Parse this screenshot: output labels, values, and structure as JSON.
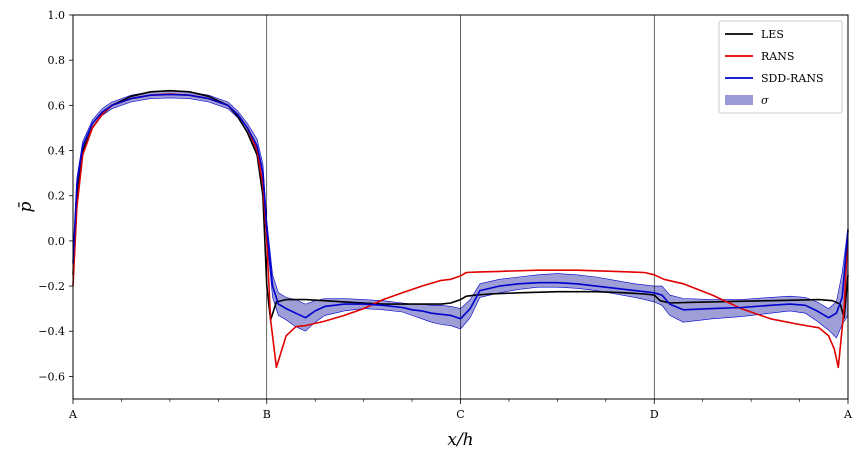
{
  "chart_data": {
    "type": "line",
    "xlabel": "x/h",
    "ylabel": "p̄",
    "xlim": [
      0,
      4
    ],
    "ylim": [
      -0.7,
      1.0
    ],
    "yticks": [
      -0.6,
      -0.4,
      -0.2,
      0.0,
      0.2,
      0.4,
      0.6,
      0.8,
      1.0
    ],
    "ytick_labels": [
      "−0.6",
      "−0.4",
      "−0.2",
      "0.0",
      "0.2",
      "0.4",
      "0.6",
      "0.8",
      "1.0"
    ],
    "xticks_major": [
      0,
      1,
      2,
      3,
      4
    ],
    "xtick_labels": [
      "A",
      "B",
      "C",
      "D",
      "A"
    ],
    "xticks_minor": [
      0.25,
      0.5,
      0.75,
      1.25,
      1.5,
      1.75,
      2.25,
      2.5,
      2.75,
      3.25,
      3.5,
      3.75
    ],
    "vlines": [
      1,
      2,
      3
    ],
    "legend_position": "top-right",
    "grid": false,
    "series": [
      {
        "name": "LES",
        "color": "#000000",
        "x": [
          0,
          0.02,
          0.05,
          0.1,
          0.15,
          0.2,
          0.3,
          0.4,
          0.5,
          0.6,
          0.7,
          0.8,
          0.85,
          0.9,
          0.95,
          0.98,
          1.0,
          1.02,
          1.05,
          1.1,
          1.2,
          1.3,
          1.4,
          1.5,
          1.6,
          1.7,
          1.8,
          1.9,
          1.95,
          2.0,
          2.03,
          2.08,
          2.15,
          2.3,
          2.5,
          2.7,
          2.85,
          2.95,
          3.0,
          3.03,
          3.08,
          3.2,
          3.4,
          3.6,
          3.75,
          3.85,
          3.92,
          3.96,
          3.98,
          4.0
        ],
        "y": [
          -0.15,
          0.2,
          0.4,
          0.5,
          0.56,
          0.6,
          0.64,
          0.66,
          0.665,
          0.66,
          0.64,
          0.6,
          0.55,
          0.48,
          0.38,
          0.2,
          -0.2,
          -0.35,
          -0.27,
          -0.26,
          -0.26,
          -0.265,
          -0.27,
          -0.275,
          -0.28,
          -0.28,
          -0.28,
          -0.28,
          -0.275,
          -0.26,
          -0.245,
          -0.24,
          -0.235,
          -0.23,
          -0.225,
          -0.225,
          -0.23,
          -0.235,
          -0.24,
          -0.265,
          -0.275,
          -0.272,
          -0.268,
          -0.265,
          -0.262,
          -0.26,
          -0.265,
          -0.28,
          -0.34,
          -0.15
        ]
      },
      {
        "name": "RANS",
        "color": "#e00000",
        "x": [
          0,
          0.02,
          0.05,
          0.1,
          0.15,
          0.2,
          0.3,
          0.4,
          0.5,
          0.6,
          0.7,
          0.8,
          0.85,
          0.9,
          0.95,
          0.98,
          1.0,
          1.02,
          1.05,
          1.1,
          1.15,
          1.2,
          1.3,
          1.4,
          1.5,
          1.6,
          1.7,
          1.8,
          1.9,
          1.95,
          2.0,
          2.03,
          2.08,
          2.2,
          2.4,
          2.6,
          2.8,
          2.95,
          3.0,
          3.05,
          3.15,
          3.3,
          3.45,
          3.6,
          3.75,
          3.85,
          3.9,
          3.93,
          3.95,
          3.98,
          4.0
        ],
        "y": [
          -0.2,
          0.15,
          0.38,
          0.5,
          0.56,
          0.6,
          0.63,
          0.645,
          0.65,
          0.645,
          0.63,
          0.6,
          0.56,
          0.5,
          0.4,
          0.25,
          0.0,
          -0.35,
          -0.56,
          -0.42,
          -0.38,
          -0.375,
          -0.355,
          -0.33,
          -0.3,
          -0.26,
          -0.23,
          -0.2,
          -0.175,
          -0.17,
          -0.155,
          -0.14,
          -0.138,
          -0.135,
          -0.13,
          -0.13,
          -0.135,
          -0.14,
          -0.15,
          -0.17,
          -0.19,
          -0.24,
          -0.3,
          -0.345,
          -0.37,
          -0.385,
          -0.42,
          -0.48,
          -0.56,
          -0.3,
          0.05
        ]
      },
      {
        "name": "SDD-RANS",
        "color": "#0000cc",
        "x": [
          0,
          0.02,
          0.05,
          0.1,
          0.15,
          0.2,
          0.3,
          0.4,
          0.5,
          0.6,
          0.7,
          0.8,
          0.85,
          0.9,
          0.95,
          0.98,
          1.0,
          1.03,
          1.06,
          1.1,
          1.15,
          1.2,
          1.25,
          1.3,
          1.4,
          1.5,
          1.6,
          1.7,
          1.75,
          1.8,
          1.85,
          1.9,
          1.95,
          2.0,
          2.05,
          2.1,
          2.2,
          2.3,
          2.4,
          2.5,
          2.6,
          2.7,
          2.8,
          2.9,
          2.95,
          3.0,
          3.04,
          3.08,
          3.15,
          3.3,
          3.45,
          3.6,
          3.7,
          3.78,
          3.84,
          3.9,
          3.94,
          3.97,
          4.0
        ],
        "y": [
          -0.1,
          0.25,
          0.42,
          0.52,
          0.57,
          0.6,
          0.63,
          0.645,
          0.648,
          0.645,
          0.63,
          0.6,
          0.56,
          0.5,
          0.42,
          0.3,
          0.05,
          -0.2,
          -0.28,
          -0.3,
          -0.32,
          -0.34,
          -0.31,
          -0.29,
          -0.28,
          -0.28,
          -0.285,
          -0.295,
          -0.305,
          -0.31,
          -0.32,
          -0.325,
          -0.33,
          -0.345,
          -0.3,
          -0.22,
          -0.2,
          -0.19,
          -0.185,
          -0.185,
          -0.19,
          -0.2,
          -0.21,
          -0.22,
          -0.225,
          -0.23,
          -0.24,
          -0.28,
          -0.305,
          -0.3,
          -0.295,
          -0.285,
          -0.28,
          -0.285,
          -0.31,
          -0.34,
          -0.32,
          -0.25,
          0.05
        ]
      }
    ],
    "band": {
      "name": "σ",
      "color": "#9a9ad6",
      "edge_color": "#0000cc",
      "x": [
        0,
        0.02,
        0.05,
        0.1,
        0.15,
        0.2,
        0.3,
        0.4,
        0.5,
        0.6,
        0.7,
        0.8,
        0.85,
        0.9,
        0.95,
        0.98,
        1.0,
        1.03,
        1.06,
        1.1,
        1.15,
        1.2,
        1.25,
        1.3,
        1.4,
        1.5,
        1.6,
        1.7,
        1.75,
        1.8,
        1.85,
        1.9,
        1.95,
        2.0,
        2.05,
        2.1,
        2.2,
        2.3,
        2.4,
        2.5,
        2.6,
        2.7,
        2.8,
        2.9,
        2.95,
        3.0,
        3.04,
        3.08,
        3.15,
        3.3,
        3.45,
        3.6,
        3.7,
        3.78,
        3.84,
        3.9,
        3.94,
        3.97,
        4.0
      ],
      "lower": [
        -0.13,
        0.22,
        0.4,
        0.505,
        0.555,
        0.585,
        0.615,
        0.63,
        0.633,
        0.63,
        0.615,
        0.585,
        0.545,
        0.48,
        0.39,
        0.26,
        0.01,
        -0.25,
        -0.33,
        -0.35,
        -0.38,
        -0.4,
        -0.36,
        -0.33,
        -0.31,
        -0.3,
        -0.305,
        -0.315,
        -0.33,
        -0.345,
        -0.36,
        -0.37,
        -0.375,
        -0.39,
        -0.34,
        -0.25,
        -0.23,
        -0.215,
        -0.205,
        -0.205,
        -0.21,
        -0.22,
        -0.235,
        -0.25,
        -0.26,
        -0.27,
        -0.285,
        -0.33,
        -0.36,
        -0.345,
        -0.335,
        -0.32,
        -0.31,
        -0.32,
        -0.355,
        -0.395,
        -0.43,
        -0.37,
        -0.33
      ],
      "upper": [
        -0.07,
        0.28,
        0.44,
        0.535,
        0.585,
        0.615,
        0.645,
        0.66,
        0.663,
        0.66,
        0.645,
        0.615,
        0.575,
        0.52,
        0.45,
        0.34,
        0.09,
        -0.15,
        -0.23,
        -0.25,
        -0.26,
        -0.28,
        -0.265,
        -0.255,
        -0.255,
        -0.26,
        -0.265,
        -0.275,
        -0.28,
        -0.28,
        -0.285,
        -0.285,
        -0.29,
        -0.3,
        -0.26,
        -0.19,
        -0.17,
        -0.16,
        -0.15,
        -0.145,
        -0.15,
        -0.16,
        -0.175,
        -0.19,
        -0.195,
        -0.2,
        -0.2,
        -0.24,
        -0.255,
        -0.26,
        -0.26,
        -0.25,
        -0.245,
        -0.25,
        -0.27,
        -0.3,
        -0.27,
        -0.14,
        0.06
      ]
    }
  }
}
